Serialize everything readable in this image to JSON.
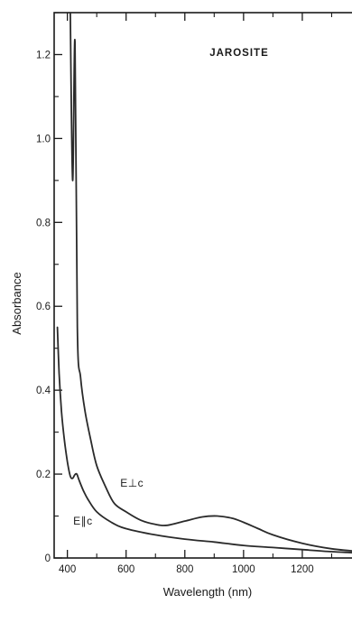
{
  "chart_data": {
    "type": "line",
    "title": "JAROSITE",
    "xlabel": "Wavelength (nm)",
    "ylabel": "Absorbance",
    "xlim": [
      355,
      1400
    ],
    "ylim": [
      0,
      1.3
    ],
    "x_ticks": [
      400,
      600,
      800,
      1000,
      1200
    ],
    "x_tick_labels": [
      "400",
      "600",
      "800",
      "1000",
      "1200"
    ],
    "y_ticks": [
      0,
      0.2,
      0.4,
      0.6,
      0.8,
      1.0,
      1.2
    ],
    "y_tick_labels": [
      "0",
      "0.2",
      "0.4",
      "0.6",
      "0.8",
      "1.0",
      "1.2"
    ],
    "grid": false,
    "legend": "none",
    "line_color": "#2a2a2a",
    "series": [
      {
        "name": "E⊥c",
        "x": [
          410,
          418,
          426,
          434,
          445,
          460,
          480,
          500,
          530,
          560,
          600,
          650,
          700,
          740,
          800,
          860,
          910,
          960,
          1000,
          1050,
          1100,
          1200,
          1300,
          1400
        ],
        "y": [
          1.3,
          0.9,
          1.23,
          0.55,
          0.43,
          0.35,
          0.28,
          0.22,
          0.17,
          0.13,
          0.11,
          0.09,
          0.08,
          0.078,
          0.088,
          0.098,
          0.1,
          0.095,
          0.085,
          0.07,
          0.055,
          0.035,
          0.022,
          0.015
        ]
      },
      {
        "name": "E∥c",
        "x": [
          366,
          372,
          380,
          390,
          400,
          410,
          418,
          425,
          432,
          440,
          455,
          470,
          500,
          550,
          600,
          700,
          800,
          900,
          1000,
          1100,
          1200,
          1300,
          1400
        ],
        "y": [
          0.55,
          0.44,
          0.35,
          0.28,
          0.23,
          0.195,
          0.19,
          0.198,
          0.2,
          0.185,
          0.16,
          0.14,
          0.11,
          0.085,
          0.07,
          0.055,
          0.045,
          0.038,
          0.03,
          0.025,
          0.02,
          0.015,
          0.012
        ]
      }
    ],
    "annotations": [
      {
        "text": "E⊥c",
        "x": 580,
        "y": 0.17
      },
      {
        "text": "E∥c",
        "x": 420,
        "y": 0.08
      }
    ]
  }
}
